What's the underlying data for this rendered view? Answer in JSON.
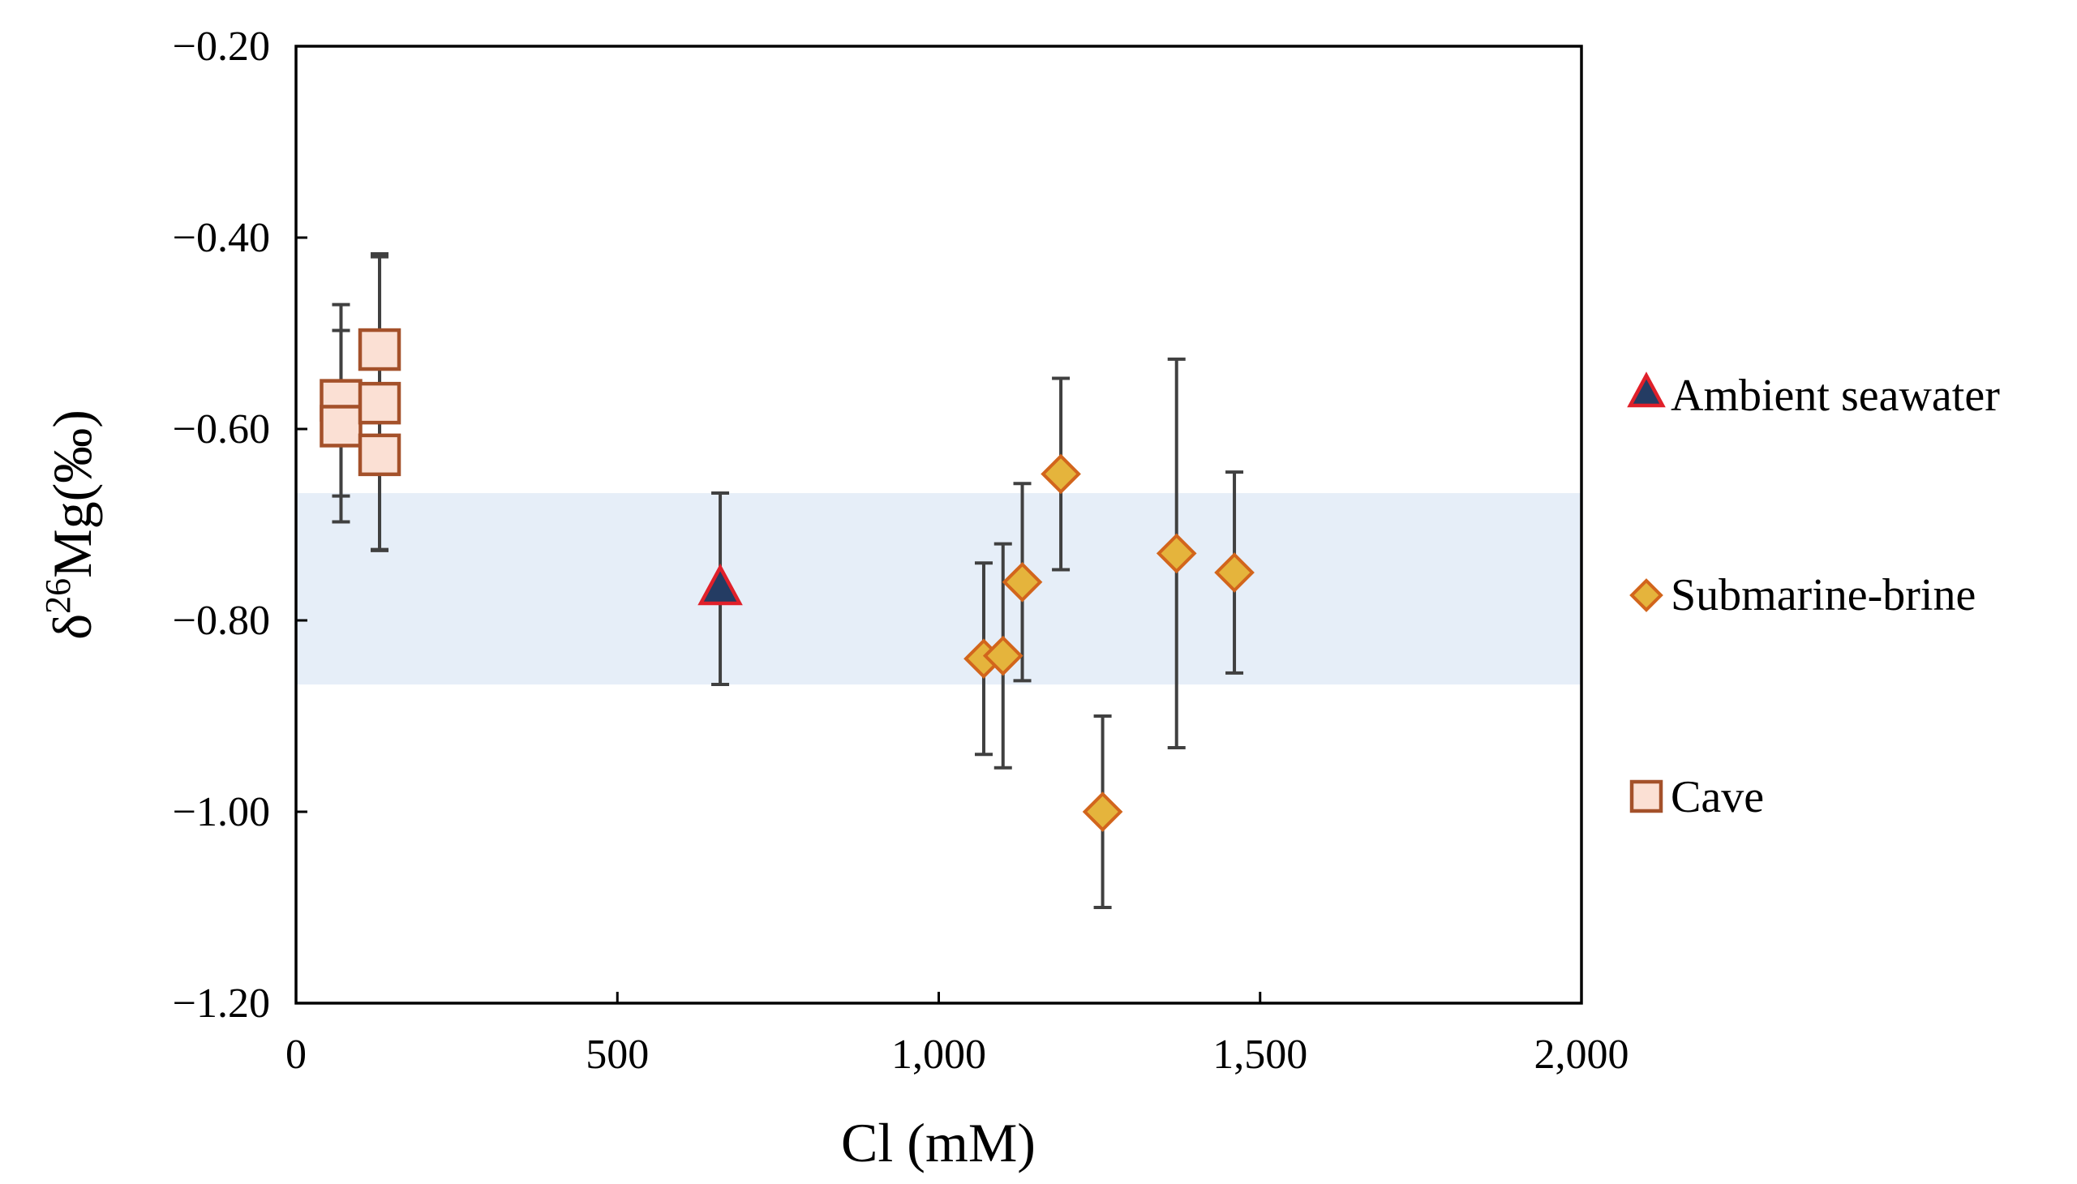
{
  "chart_data": {
    "type": "scatter",
    "title": "",
    "xlabel": "Cl (mM)",
    "ylabel_prefix": "δ",
    "ylabel_superscript": "26",
    "ylabel_main": "Mg(‰)",
    "xlim": [
      0,
      2000
    ],
    "ylim": [
      -1.2,
      -0.2
    ],
    "x_ticks": [
      0,
      500,
      1000,
      1500,
      2000
    ],
    "x_tick_labels": [
      "0",
      "500",
      "1,000",
      "1,500",
      "2,000"
    ],
    "y_ticks": [
      -0.2,
      -0.4,
      -0.6,
      -0.8,
      -1.0,
      -1.2
    ],
    "y_tick_labels": [
      "−0.20",
      "−0.40",
      "−0.60",
      "−0.80",
      "−1.00",
      "−1.20"
    ],
    "grid": false,
    "legend_position": "right",
    "band": {
      "ymin": -0.867,
      "ymax": -0.667,
      "color": "#e6eef8"
    },
    "colors": {
      "seawater_fill": "#243c63",
      "seawater_edge": "#e0202a",
      "brine_fill": "#e5b43c",
      "brine_edge": "#d2651c",
      "cave_fill": "#fbe0d4",
      "cave_edge": "#a4512a",
      "errorbar": "#404040"
    },
    "series": [
      {
        "name": "Ambient seawater",
        "marker": "triangle",
        "points": [
          {
            "x": 660,
            "y": -0.767,
            "err": 0.1
          }
        ]
      },
      {
        "name": "Submarine-brine",
        "marker": "diamond",
        "points": [
          {
            "x": 1070,
            "y": -0.84,
            "err": 0.1
          },
          {
            "x": 1100,
            "y": -0.837,
            "err": 0.117
          },
          {
            "x": 1130,
            "y": -0.76,
            "err": 0.103
          },
          {
            "x": 1190,
            "y": -0.647,
            "err": 0.1
          },
          {
            "x": 1255,
            "y": -1.0,
            "err": 0.1
          },
          {
            "x": 1370,
            "y": -0.73,
            "err": 0.203
          },
          {
            "x": 1460,
            "y": -0.75,
            "err": 0.105
          }
        ]
      },
      {
        "name": "Cave",
        "marker": "square",
        "points": [
          {
            "x": 70,
            "y": -0.57,
            "err": 0.1
          },
          {
            "x": 70,
            "y": -0.597,
            "err": 0.1
          },
          {
            "x": 130,
            "y": -0.517,
            "err": 0.1
          },
          {
            "x": 130,
            "y": -0.573,
            "err": 0.153
          },
          {
            "x": 130,
            "y": -0.627,
            "err": 0.1
          }
        ]
      }
    ]
  }
}
